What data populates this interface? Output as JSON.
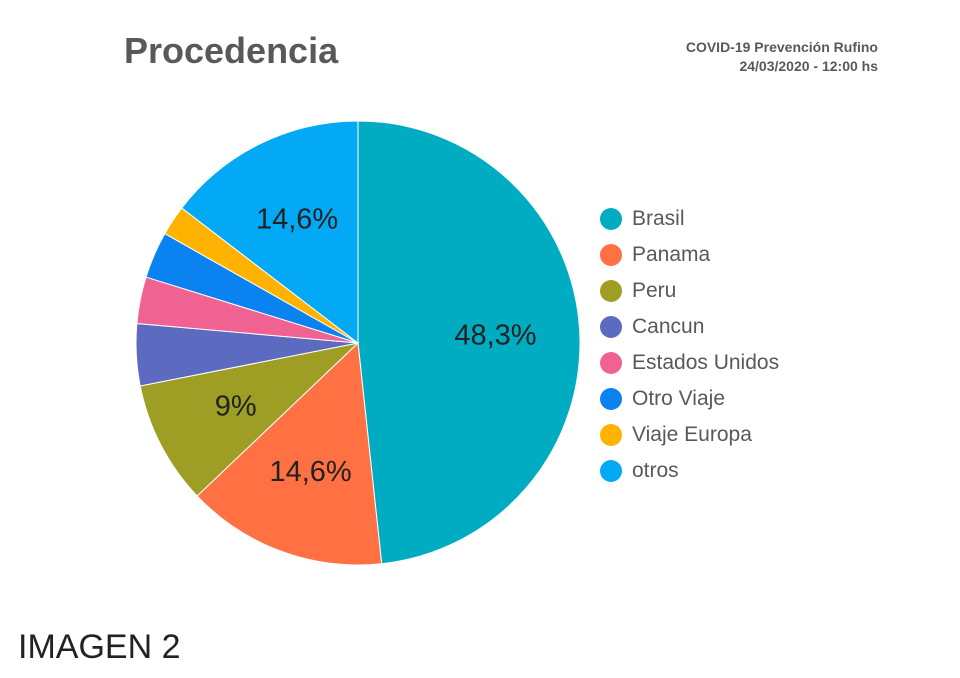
{
  "header": {
    "title": "Procedencia",
    "source": "COVID-19 Prevención Rufino",
    "timestamp": "24/03/2020 - 12:00 hs"
  },
  "footer": {
    "label": "IMAGEN 2"
  },
  "chart_data": {
    "type": "pie",
    "title": "Procedencia",
    "legend_position": "right",
    "slices": [
      {
        "label": "Brasil",
        "value": 48.3,
        "color": "#00acc1",
        "data_label": "48,3%"
      },
      {
        "label": "Panama",
        "value": 14.6,
        "color": "#ff7043",
        "data_label": "14,6%"
      },
      {
        "label": "Peru",
        "value": 9.0,
        "color": "#9e9d24",
        "data_label": "9%"
      },
      {
        "label": "Cancun",
        "value": 4.5,
        "color": "#5c6bc0",
        "data_label": ""
      },
      {
        "label": "Estados Unidos",
        "value": 3.4,
        "color": "#f06292",
        "data_label": ""
      },
      {
        "label": "Otro Viaje",
        "value": 3.4,
        "color": "#0a83f1",
        "data_label": ""
      },
      {
        "label": "Viaje Europa",
        "value": 2.2,
        "color": "#ffb300",
        "data_label": ""
      },
      {
        "label": "otros",
        "value": 14.6,
        "color": "#03a9f4",
        "data_label": "14,6%"
      }
    ]
  }
}
